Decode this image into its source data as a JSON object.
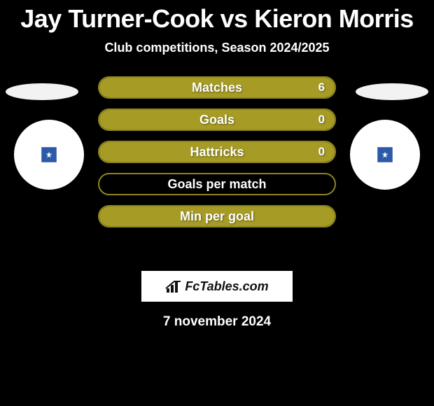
{
  "title": "Jay Turner-Cook vs Kieron Morris",
  "subtitle": "Club competitions, Season 2024/2025",
  "attribution": "FcTables.com",
  "date": "7 november 2024",
  "colors": {
    "bar_fill": "#a59b25",
    "bar_border": "#8d851f",
    "bar_empty_border": "#8d851f",
    "text": "#ffffff",
    "shadow": "#f2f2f2",
    "badge_bg": "#ffffff",
    "crest": "#2a5aa8"
  },
  "stats": [
    {
      "label": "Matches",
      "left_pct": 0,
      "right_pct": 100,
      "right_value": "6",
      "show_value": true
    },
    {
      "label": "Goals",
      "left_pct": 0,
      "right_pct": 100,
      "right_value": "0",
      "show_value": true
    },
    {
      "label": "Hattricks",
      "left_pct": 0,
      "right_pct": 100,
      "right_value": "0",
      "show_value": true
    },
    {
      "label": "Goals per match",
      "left_pct": 0,
      "right_pct": 0,
      "right_value": "",
      "show_value": false
    },
    {
      "label": "Min per goal",
      "left_pct": 50,
      "right_pct": 50,
      "right_value": "",
      "show_value": false
    }
  ]
}
